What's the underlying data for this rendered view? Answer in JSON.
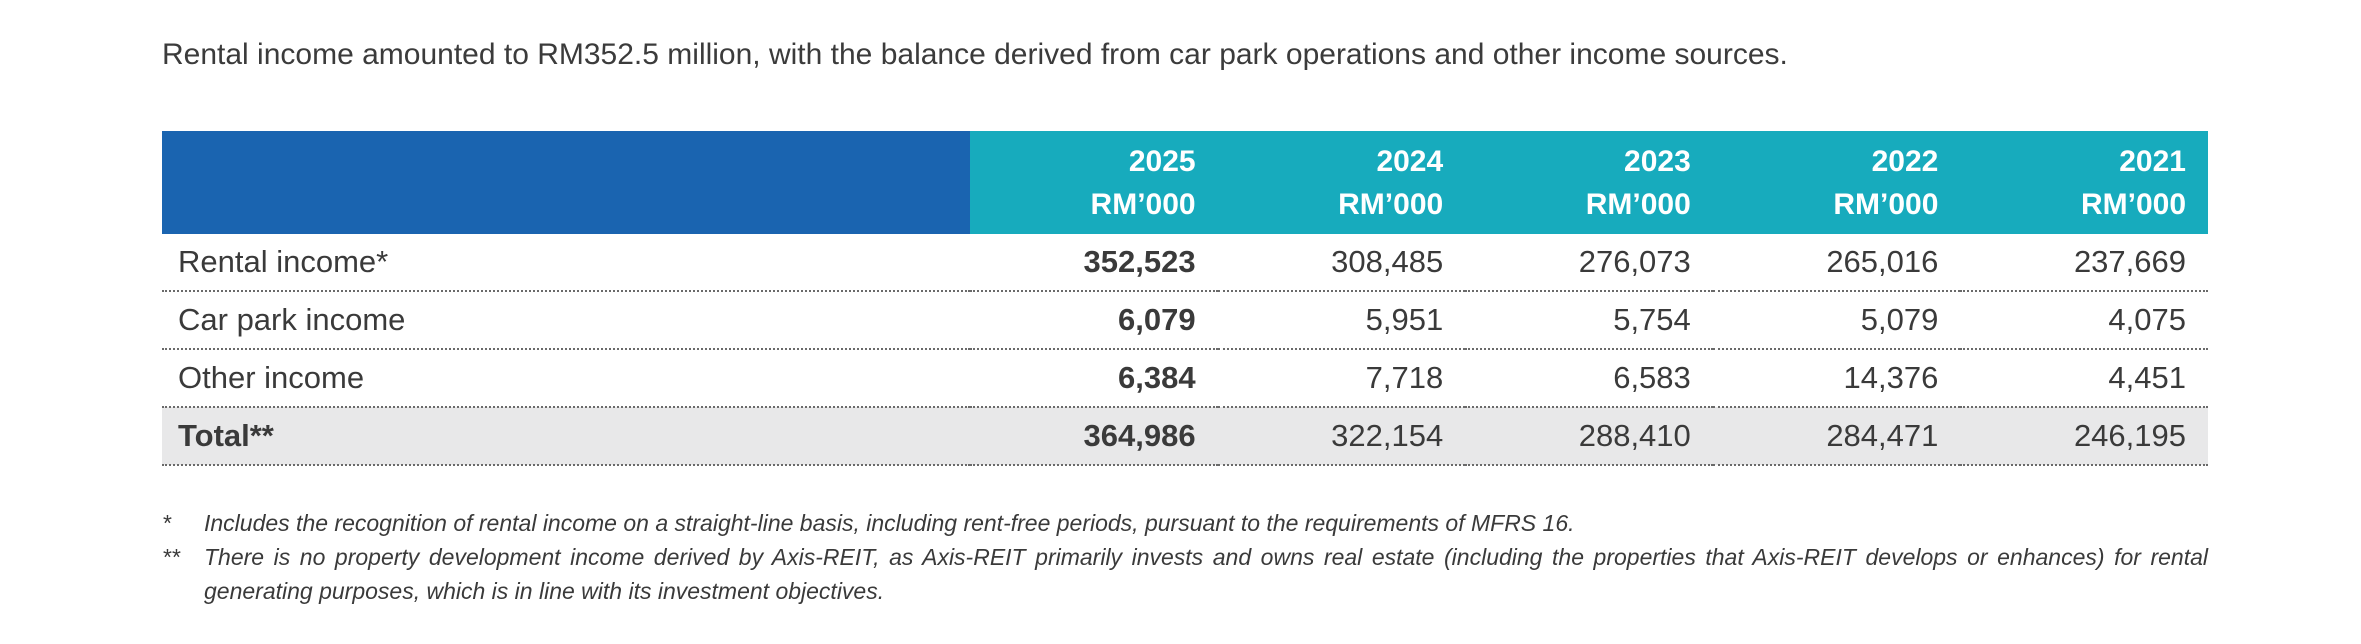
{
  "intro": "Rental income amounted to RM352.5 million, with the balance derived from car park operations and other income sources.",
  "table": {
    "columns": [
      {
        "year": "2025",
        "unit": "RM’000"
      },
      {
        "year": "2024",
        "unit": "RM’000"
      },
      {
        "year": "2023",
        "unit": "RM’000"
      },
      {
        "year": "2022",
        "unit": "RM’000"
      },
      {
        "year": "2021",
        "unit": "RM’000"
      }
    ],
    "rows": [
      {
        "label": "Rental income*",
        "values": [
          "352,523",
          "308,485",
          "276,073",
          "265,016",
          "237,669"
        ]
      },
      {
        "label": "Car park income",
        "values": [
          "6,079",
          "5,951",
          "5,754",
          "5,079",
          "4,075"
        ]
      },
      {
        "label": "Other income",
        "values": [
          "6,384",
          "7,718",
          "6,583",
          "14,376",
          "4,451"
        ]
      },
      {
        "label": "Total**",
        "values": [
          "364,986",
          "322,154",
          "288,410",
          "284,471",
          "246,195"
        ]
      }
    ]
  },
  "notes": [
    {
      "mark": "*",
      "text": "Includes the recognition of rental income on a straight-line basis, including rent-free periods, pursuant to the requirements of MFRS 16."
    },
    {
      "mark": "**",
      "text": "There is no property development income derived by Axis-REIT, as Axis-REIT primarily invests and owns real estate (including the properties that Axis-REIT develops or enhances) for rental generating purposes, which is in line with its investment objectives."
    }
  ],
  "colors": {
    "header_label_bg": "#1a64b0",
    "header_year_bg": "#17abbd",
    "total_row_bg": "#e8e8e9"
  }
}
